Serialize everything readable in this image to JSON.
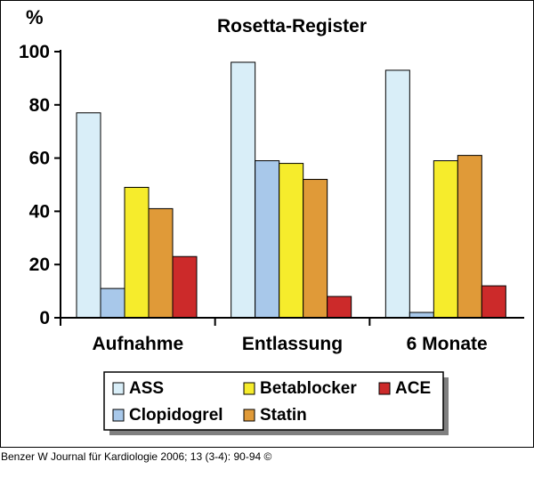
{
  "chart_data": {
    "type": "bar",
    "title": "Rosetta-Register",
    "ylabel": "%",
    "xlabel": "",
    "ylim": [
      0,
      100
    ],
    "yticks": [
      0,
      20,
      40,
      60,
      80,
      100
    ],
    "grid": false,
    "legend_position": "bottom",
    "categories": [
      "Aufnahme",
      "Entlassung",
      "6 Monate"
    ],
    "series": [
      {
        "name": "ASS",
        "color": "#d9eef8",
        "values": [
          77,
          96,
          93
        ]
      },
      {
        "name": "Clopidogrel",
        "color": "#a8c8ea",
        "values": [
          11,
          59,
          2
        ]
      },
      {
        "name": "Betablocker",
        "color": "#f6ec2c",
        "values": [
          49,
          58,
          59
        ]
      },
      {
        "name": "Statin",
        "color": "#e09a38",
        "values": [
          41,
          52,
          61
        ]
      },
      {
        "name": "ACE",
        "color": "#cc2a2a",
        "values": [
          23,
          8,
          12
        ]
      }
    ],
    "legend_order": [
      "ASS",
      "Betablocker",
      "ACE",
      "Clopidogrel",
      "Statin"
    ]
  },
  "citation": "Benzer W Journal für Kardiologie 2006; 13 (3-4): 90-94 ©"
}
